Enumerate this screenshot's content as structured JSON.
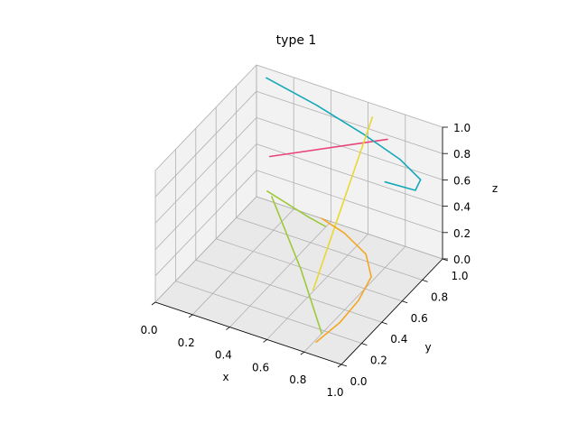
{
  "chart_data": {
    "type": "line3d",
    "title": "type 1",
    "xlabel": "x",
    "ylabel": "y",
    "zlabel": "z",
    "xlim": [
      0,
      1
    ],
    "ylim": [
      0,
      1
    ],
    "zlim": [
      0,
      1
    ],
    "x_ticks": [
      "0.0",
      "0.2",
      "0.4",
      "0.6",
      "0.8",
      "1.0"
    ],
    "y_ticks": [
      "0.0",
      "0.2",
      "0.4",
      "0.6",
      "0.8",
      "1.0"
    ],
    "z_ticks": [
      "0.0",
      "0.2",
      "0.4",
      "0.6",
      "0.8",
      "1.0"
    ],
    "grid": true,
    "series": [
      {
        "color": "#e8457a",
        "points": [
          [
            0.18,
            0.8,
            0.55
          ],
          [
            0.72,
            0.97,
            0.8
          ]
        ]
      },
      {
        "color": "#14a8b8",
        "points": [
          [
            0.08,
            0.95,
            0.98
          ],
          [
            0.35,
            0.95,
            0.9
          ],
          [
            0.6,
            0.95,
            0.8
          ],
          [
            0.8,
            0.95,
            0.7
          ],
          [
            0.92,
            0.93,
            0.62
          ],
          [
            0.93,
            0.86,
            0.6
          ],
          [
            0.8,
            0.8,
            0.65
          ]
        ]
      },
      {
        "color": "#e8d830",
        "points": [
          [
            0.62,
            0.42,
            0.05
          ],
          [
            0.65,
            0.95,
            0.95
          ]
        ]
      },
      {
        "color": "#9ec93a",
        "points": [
          [
            0.37,
            0.47,
            0.6
          ],
          [
            0.62,
            0.3,
            0.3
          ],
          [
            0.84,
            0.1,
            0.08
          ]
        ]
      },
      {
        "color": "#9ec93a",
        "points": [
          [
            0.34,
            0.48,
            0.62
          ],
          [
            0.5,
            0.6,
            0.4
          ],
          [
            0.56,
            0.65,
            0.32
          ]
        ]
      },
      {
        "color": "#f5a623",
        "points": [
          [
            0.81,
            0.1,
            0.0
          ],
          [
            0.83,
            0.3,
            0.0
          ],
          [
            0.82,
            0.5,
            0.0
          ],
          [
            0.78,
            0.7,
            0.0
          ],
          [
            0.67,
            0.85,
            0.0
          ],
          [
            0.5,
            0.95,
            0.0
          ],
          [
            0.35,
            1.0,
            0.0
          ]
        ]
      }
    ]
  }
}
